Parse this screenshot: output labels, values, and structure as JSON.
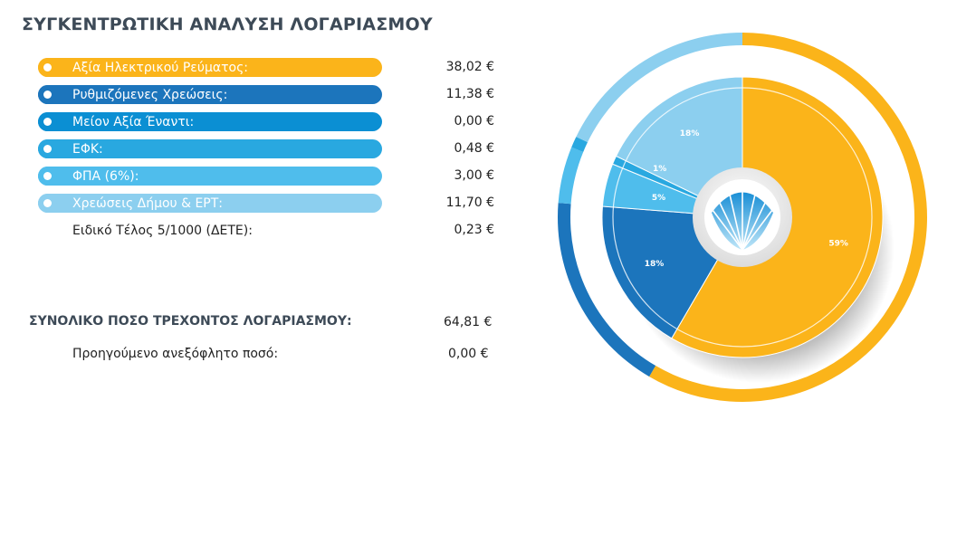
{
  "title": "ΣΥΓΚΕΝΤΡΩΤΙΚΗ ΑΝΑΛΥΣΗ ΛΟΓΑΡΙΑΣΜΟΥ",
  "items": [
    {
      "label": "Αξία Ηλεκτρικού Ρεύματος:",
      "amount": "38,02 €",
      "color": "#fbb41a",
      "pill": true
    },
    {
      "label": "Ρυθμιζόμενες Χρεώσεις:",
      "amount": "11,38 €",
      "color": "#1c75bc",
      "pill": true
    },
    {
      "label": "Μείον Αξία Έναντι:",
      "amount": "0,00 €",
      "color": "#0b8fd3",
      "pill": true
    },
    {
      "label": "ΕΦΚ:",
      "amount": "0,48 €",
      "color": "#29a8e0",
      "pill": true
    },
    {
      "label": "ΦΠΑ (6%):",
      "amount": "3,00 €",
      "color": "#4fbdec",
      "pill": true
    },
    {
      "label": "Χρεώσεις Δήμου & ΕΡΤ:",
      "amount": "11,70 €",
      "color": "#8ccfef",
      "pill": true
    },
    {
      "label": "Ειδικό Τέλος 5/1000 (ΔΕΤΕ):",
      "amount": "0,23 €",
      "color": "",
      "pill": false
    }
  ],
  "total": {
    "label": "ΣΥΝΟΛΙΚΟ ΠΟΣΟ ΤΡΕΧΟΝΤΟΣ ΛΟΓΑΡΙΑΣΜΟΥ:",
    "amount": "64,81 €"
  },
  "previous": {
    "label": "Προηγούμενο ανεξόφλητο ποσό:",
    "amount": "0,00 €"
  },
  "chart_data": {
    "type": "pie",
    "slices": [
      {
        "value": 59,
        "label": "59%",
        "color": "#fbb41a"
      },
      {
        "value": 18,
        "label": "18%",
        "color": "#1c75bc"
      },
      {
        "value": 5,
        "label": "5%",
        "color": "#4fbdec"
      },
      {
        "value": 1,
        "label": "1%",
        "color": "#29a8e0"
      },
      {
        "value": 18,
        "label": "18%",
        "color": "#8ccfef"
      }
    ],
    "outer_ring": [
      {
        "value": 59,
        "color": "#fbb41a"
      },
      {
        "value": 18,
        "color": "#1c75bc"
      },
      {
        "value": 5,
        "color": "#4fbdec"
      },
      {
        "value": 1,
        "color": "#29a8e0"
      },
      {
        "value": 18,
        "color": "#8ccfef"
      }
    ],
    "logo": "shell-icon"
  }
}
